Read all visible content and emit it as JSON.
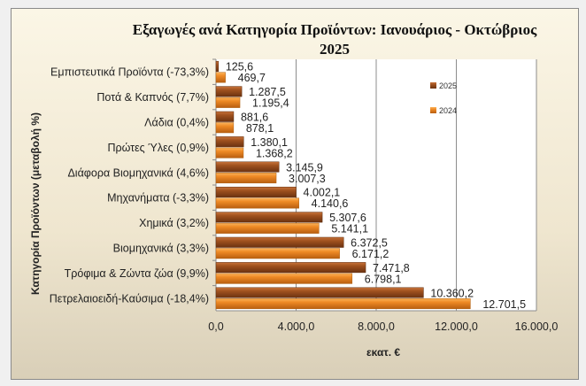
{
  "chart_data": {
    "type": "bar",
    "orientation": "horizontal",
    "title": "Εξαγωγές ανά Κατηγορία Προϊόντων:  Ιανουάριος - Οκτώβριος 2025",
    "title_lines": [
      "Εξαγωγές ανά Κατηγορία Προϊόντων:  Ιανουάριος - Οκτώβριος",
      "2025"
    ],
    "xlabel": "εκατ. €",
    "ylabel": "Κατηγορία Προϊόντων (μεταβολή %)",
    "xlim": [
      0,
      16000
    ],
    "xticks": [
      "0,0",
      "4.000,0",
      "8.000,0",
      "12.000,0",
      "16.000,0"
    ],
    "grid": true,
    "legend_placement": "right",
    "categories": [
      "Εμπιστευτικά Προϊόντα (-73,3%)",
      "Ποτά & Καπνός (7,7%)",
      "Λάδια (0,4%)",
      "Πρώτες Ύλες (0,9%)",
      "Διάφορα Βιομηχανικά (4,6%)",
      "Μηχανήματα (-3,3%)",
      "Χημικά (3,2%)",
      "Βιομηχανικά (3,3%)",
      "Τρόφιμα & Ζώντα ζώα (9,9%)",
      "Πετρελαιοειδή-Καύσιμα (-18,4%)"
    ],
    "series": [
      {
        "name": "2025",
        "color": "#8b4513",
        "values": [
          125.6,
          1287.5,
          881.6,
          1380.1,
          3145.9,
          4002.1,
          5307.6,
          6372.5,
          7471.8,
          10360.2
        ],
        "labels": [
          "125,6",
          "1.287,5",
          "881,6",
          "1.380,1",
          "3.145,9",
          "4.002,1",
          "5.307,6",
          "6.372,5",
          "7.471,8",
          "10.360,2"
        ]
      },
      {
        "name": "2024",
        "color": "#e8801e",
        "values": [
          469.7,
          1195.4,
          878.1,
          1368.2,
          3007.3,
          4140.6,
          5141.1,
          6171.2,
          6798.1,
          12701.5
        ],
        "labels": [
          "469,7",
          "1.195,4",
          "878,1",
          "1.368,2",
          "3.007,3",
          "4.140,6",
          "5.141,1",
          "6.171,2",
          "6.798,1",
          "12.701,5"
        ]
      }
    ]
  }
}
